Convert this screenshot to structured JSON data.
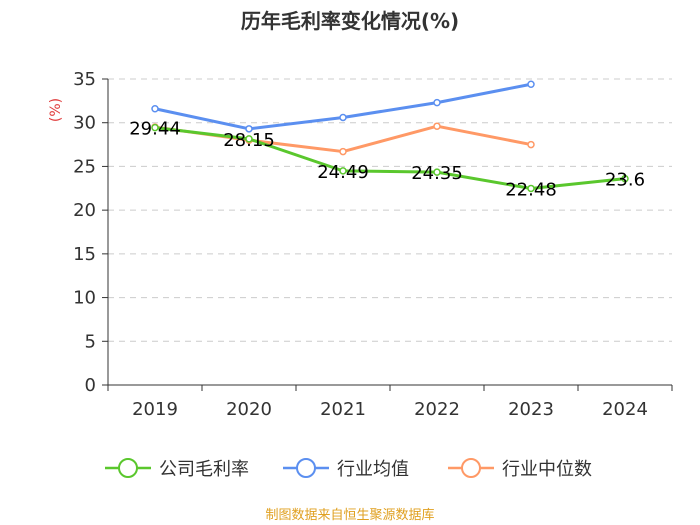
{
  "chart_data": {
    "type": "line",
    "title": "历年毛利率变化情况(%)",
    "ylabel": "(%)",
    "xlabel": "",
    "categories": [
      "2019",
      "2020",
      "2021",
      "2022",
      "2023",
      "2024"
    ],
    "ylim": [
      0,
      35
    ],
    "yticks": [
      0,
      5,
      10,
      15,
      20,
      25,
      30,
      35
    ],
    "grid": true,
    "legend_position": "bottom",
    "series": [
      {
        "name": "公司毛利率",
        "color": "#5ac72d",
        "values": [
          29.44,
          28.15,
          24.49,
          24.35,
          22.48,
          23.6
        ],
        "labels": [
          "29.44",
          "28.15",
          "24.49",
          "24.35",
          "22.48",
          "23.6"
        ]
      },
      {
        "name": "行业均值",
        "color": "#5b8ff0",
        "values": [
          31.6,
          29.3,
          30.6,
          32.3,
          34.4,
          null
        ]
      },
      {
        "name": "行业中位数",
        "color": "#ff9966",
        "values": [
          29.5,
          28.0,
          26.7,
          29.6,
          27.5,
          null
        ]
      }
    ]
  },
  "source": "制图数据来自恒生聚源数据库",
  "colors": {
    "ylabel": "#e03c3c",
    "source": "#e0a020",
    "axis": "#333333",
    "grid": "#cccccc"
  }
}
